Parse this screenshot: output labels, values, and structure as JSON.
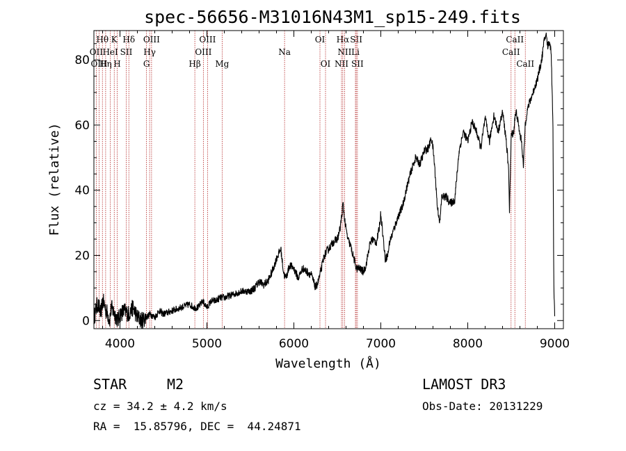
{
  "chart_data": {
    "type": "line",
    "title": "spec-56656-M31016N43M1_sp15-249.fits",
    "xlabel": "Wavelength (Å)",
    "ylabel": "Flux (relative)",
    "xlim": [
      3700,
      9100
    ],
    "ylim": [
      -2.5,
      89
    ],
    "xticks": [
      4000,
      5000,
      6000,
      7000,
      8000,
      9000
    ],
    "yticks": [
      0,
      20,
      40,
      60,
      80
    ],
    "spectrum": {
      "x": [
        3700,
        3720,
        3740,
        3760,
        3780,
        3800,
        3820,
        3840,
        3860,
        3880,
        3900,
        3920,
        3940,
        3960,
        3980,
        4000,
        4050,
        4100,
        4150,
        4200,
        4250,
        4300,
        4350,
        4400,
        4450,
        4500,
        4600,
        4700,
        4800,
        4850,
        4900,
        4950,
        5000,
        5050,
        5100,
        5150,
        5200,
        5300,
        5400,
        5500,
        5550,
        5600,
        5650,
        5700,
        5750,
        5800,
        5850,
        5880,
        5900,
        5920,
        5950,
        6000,
        6050,
        6100,
        6150,
        6200,
        6250,
        6280,
        6300,
        6350,
        6400,
        6450,
        6500,
        6530,
        6550,
        6565,
        6580,
        6600,
        6620,
        6650,
        6680,
        6700,
        6720,
        6750,
        6800,
        6830,
        6850,
        6870,
        6900,
        6950,
        6980,
        7000,
        7050,
        7080,
        7100,
        7150,
        7200,
        7250,
        7300,
        7350,
        7400,
        7450,
        7500,
        7550,
        7580,
        7600,
        7620,
        7650,
        7680,
        7700,
        7750,
        7800,
        7850,
        7900,
        7950,
        8000,
        8050,
        8100,
        8150,
        8200,
        8250,
        8300,
        8350,
        8400,
        8440,
        8470,
        8480,
        8500,
        8530,
        8540,
        8560,
        8600,
        8620,
        8640,
        8660,
        8680,
        8700,
        8750,
        8800,
        8850,
        8880,
        8900,
        8920,
        8940,
        8960,
        8980,
        8990,
        9000
      ],
      "y": [
        1,
        3,
        5,
        4,
        2,
        6,
        5,
        3,
        2,
        0,
        4,
        3,
        2,
        1,
        0,
        2,
        3,
        2,
        4,
        1,
        0,
        1,
        2,
        1,
        3,
        2,
        3,
        4,
        5,
        4,
        4,
        6,
        4,
        6,
        6,
        7,
        7,
        8,
        9,
        9,
        10,
        12,
        11,
        12,
        15,
        19,
        22,
        15,
        13,
        14,
        17,
        16,
        13,
        16,
        15,
        14,
        10,
        12,
        14,
        20,
        22,
        24,
        25,
        28,
        32,
        36,
        32,
        28,
        25,
        23,
        20,
        18,
        16,
        16,
        15,
        17,
        20,
        23,
        25,
        24,
        28,
        33,
        19,
        20,
        24,
        28,
        32,
        35,
        41,
        46,
        50,
        48,
        52,
        53,
        56,
        53,
        47,
        35,
        30,
        38,
        38,
        36,
        37,
        52,
        58,
        55,
        61,
        58,
        53,
        62,
        55,
        63,
        58,
        64,
        56,
        46,
        34,
        57,
        58,
        62,
        64,
        57,
        55,
        47,
        60,
        64,
        66,
        70,
        74,
        80,
        86,
        88,
        84,
        86,
        82,
        60,
        10,
        2
      ]
    },
    "emission_lines": [
      {
        "label": "Hθ",
        "wl": 3798,
        "row": 1
      },
      {
        "label": "K",
        "wl": 3934,
        "row": 1
      },
      {
        "label": "Hδ",
        "wl": 4102,
        "row": 1
      },
      {
        "label": "OIII",
        "wl": 4363,
        "row": 1
      },
      {
        "label": "OIII",
        "wl": 5007,
        "row": 1
      },
      {
        "label": "OI",
        "wl": 6300,
        "row": 1
      },
      {
        "label": "Hα",
        "wl": 6563,
        "row": 1
      },
      {
        "label": "SII",
        "wl": 6717,
        "row": 1
      },
      {
        "label": "CaII",
        "wl": 8542,
        "row": 1
      },
      {
        "label": "OII",
        "wl": 3727,
        "row": 2
      },
      {
        "label": "HeI",
        "wl": 3889,
        "row": 2
      },
      {
        "label": "SII",
        "wl": 4072,
        "row": 2
      },
      {
        "label": "Hγ",
        "wl": 4341,
        "row": 2
      },
      {
        "label": "OIII",
        "wl": 4959,
        "row": 2
      },
      {
        "label": "Na",
        "wl": 5893,
        "row": 2
      },
      {
        "label": "NII",
        "wl": 6583,
        "row": 2
      },
      {
        "label": "Li",
        "wl": 6708,
        "row": 2
      },
      {
        "label": "CaII",
        "wl": 8498,
        "row": 2
      },
      {
        "label": "OIII",
        "wl": 3760,
        "row": 3
      },
      {
        "label": "Hη",
        "wl": 3835,
        "row": 3
      },
      {
        "label": "H",
        "wl": 3968,
        "row": 3
      },
      {
        "label": "G",
        "wl": 4305,
        "row": 3
      },
      {
        "label": "Hβ",
        "wl": 4861,
        "row": 3
      },
      {
        "label": "Mg",
        "wl": 5175,
        "row": 3
      },
      {
        "label": "OI",
        "wl": 6364,
        "row": 3
      },
      {
        "label": "NII",
        "wl": 6548,
        "row": 3
      },
      {
        "label": "SII",
        "wl": 6731,
        "row": 3
      },
      {
        "label": "CaII",
        "wl": 8662,
        "row": 3
      }
    ],
    "line_color": "#000000",
    "marker_color": "#b22222"
  },
  "info": {
    "class_label": "STAR",
    "subclass": "M2",
    "survey": "LAMOST DR3",
    "cz": "cz = 34.2 ± 4.2 km/s",
    "obs_date": "Obs-Date: 20131229",
    "coords": "RA =  15.85796, DEC =  44.24871"
  }
}
